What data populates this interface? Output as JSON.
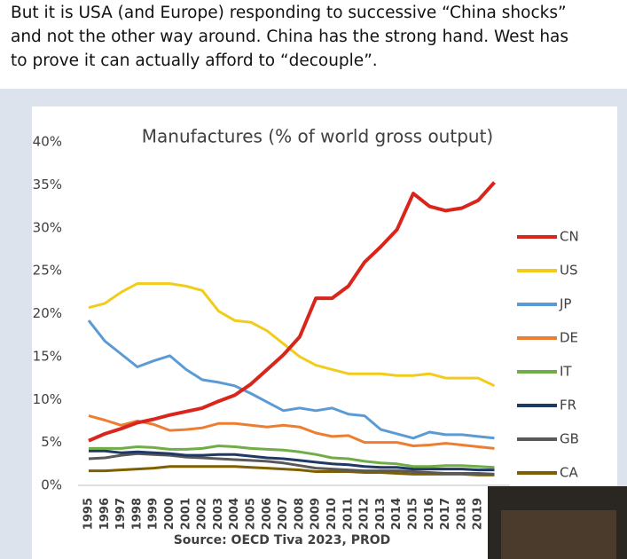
{
  "caption": [
    "But it is USA (and Europe) responding to successive “China shocks”",
    "and not the other way around. China has the strong hand. West has",
    "to prove it can actually afford to “decouple”."
  ],
  "chart_data": {
    "type": "line",
    "title": "Manufactures (% of world gross output)",
    "source": "Source: OECD Tiva 2023, PROD",
    "categories": [
      "1995",
      "1996",
      "1997",
      "1998",
      "1999",
      "2000",
      "2001",
      "2002",
      "2003",
      "2004",
      "2005",
      "2006",
      "2007",
      "2008",
      "2009",
      "2010",
      "2011",
      "2012",
      "2013",
      "2014",
      "2015",
      "2016",
      "2017",
      "2018",
      "2019",
      null
    ],
    "series": [
      {
        "name": "CN",
        "color": "#d9261c",
        "values": [
          5.2,
          6.0,
          6.6,
          7.3,
          7.7,
          8.2,
          8.6,
          9.0,
          9.8,
          10.5,
          11.8,
          13.5,
          15.2,
          17.3,
          21.8,
          21.8,
          23.2,
          26.0,
          27.8,
          29.8,
          34.0,
          32.5,
          32.0,
          32.3,
          33.2,
          35.3
        ]
      },
      {
        "name": "US",
        "color": "#f2cc1a",
        "values": [
          20.7,
          21.2,
          22.5,
          23.5,
          23.5,
          23.5,
          23.2,
          22.7,
          20.3,
          19.2,
          19.0,
          18.0,
          16.5,
          15.0,
          14.0,
          13.5,
          13.0,
          13.0,
          13.0,
          12.8,
          12.8,
          13.0,
          12.5,
          12.5,
          12.5,
          11.6
        ]
      },
      {
        "name": "JP",
        "color": "#5b9bd5",
        "values": [
          19.2,
          16.8,
          15.3,
          13.8,
          14.5,
          15.1,
          13.5,
          12.3,
          12.0,
          11.6,
          10.7,
          9.7,
          8.7,
          9.0,
          8.7,
          9.0,
          8.3,
          8.1,
          6.5,
          6.0,
          5.5,
          6.2,
          5.9,
          5.9,
          5.7,
          5.5
        ]
      },
      {
        "name": "DE",
        "color": "#ed7d31",
        "values": [
          8.1,
          7.6,
          7.0,
          7.5,
          7.1,
          6.4,
          6.5,
          6.7,
          7.2,
          7.2,
          7.0,
          6.8,
          7.0,
          6.8,
          6.1,
          5.7,
          5.8,
          5.0,
          5.0,
          5.0,
          4.6,
          4.7,
          4.9,
          4.7,
          4.5,
          4.3
        ]
      },
      {
        "name": "IT",
        "color": "#70ad47",
        "values": [
          4.3,
          4.3,
          4.3,
          4.5,
          4.4,
          4.2,
          4.2,
          4.3,
          4.6,
          4.5,
          4.3,
          4.2,
          4.1,
          3.9,
          3.6,
          3.2,
          3.1,
          2.8,
          2.6,
          2.5,
          2.2,
          2.2,
          2.3,
          2.3,
          2.2,
          2.1
        ]
      },
      {
        "name": "FR",
        "color": "#1f3864",
        "values": [
          4.0,
          4.0,
          3.8,
          3.9,
          3.8,
          3.7,
          3.5,
          3.5,
          3.6,
          3.6,
          3.4,
          3.2,
          3.1,
          2.9,
          2.7,
          2.5,
          2.4,
          2.2,
          2.1,
          2.1,
          1.9,
          1.9,
          1.9,
          1.9,
          1.8,
          1.8
        ]
      },
      {
        "name": "GB",
        "color": "#595959",
        "values": [
          3.1,
          3.2,
          3.5,
          3.7,
          3.6,
          3.5,
          3.3,
          3.2,
          3.1,
          3.0,
          2.9,
          2.8,
          2.6,
          2.3,
          2.0,
          1.9,
          1.8,
          1.7,
          1.7,
          1.7,
          1.6,
          1.5,
          1.4,
          1.4,
          1.4,
          1.3
        ]
      },
      {
        "name": "CA",
        "color": "#7f6000",
        "values": [
          1.7,
          1.7,
          1.8,
          1.9,
          2.0,
          2.2,
          2.2,
          2.2,
          2.2,
          2.2,
          2.1,
          2.0,
          1.9,
          1.8,
          1.6,
          1.6,
          1.6,
          1.5,
          1.5,
          1.4,
          1.3,
          1.3,
          1.3,
          1.3,
          1.2,
          1.2
        ]
      }
    ],
    "ylim": [
      0,
      40
    ],
    "yticks": [
      {
        "value": 0,
        "label": "0%"
      },
      {
        "value": 5,
        "label": "5%"
      },
      {
        "value": 10,
        "label": "10%"
      },
      {
        "value": 15,
        "label": "15%"
      },
      {
        "value": 20,
        "label": "20%"
      },
      {
        "value": 25,
        "label": "25%"
      },
      {
        "value": 30,
        "label": "30%"
      },
      {
        "value": 35,
        "label": "35%"
      },
      {
        "value": 40,
        "label": "40%"
      }
    ],
    "grid": false,
    "legend": "right"
  }
}
